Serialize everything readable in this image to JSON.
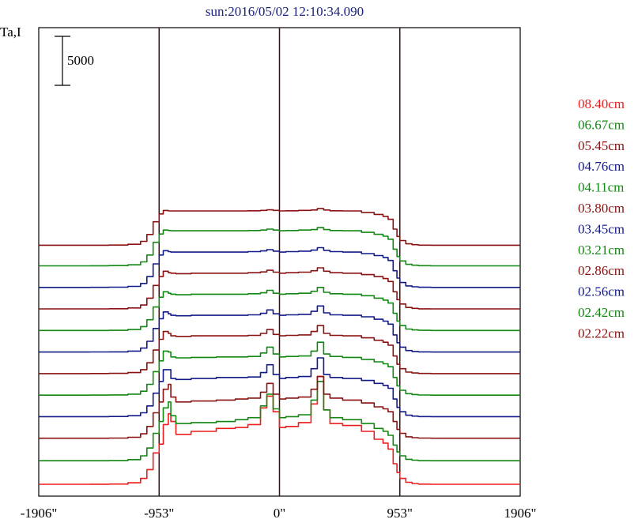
{
  "chart_data": {
    "type": "line",
    "title": "sun:2016/05/02 12:10:34.090",
    "ylabel": "Ta,I",
    "scale_bar_label": "5000",
    "scale_bar_value": 5000,
    "xlim": [
      -1906,
      1906
    ],
    "x_ticks": [
      {
        "value": -1906,
        "label": "-1906\""
      },
      {
        "value": -953,
        "label": "-953\""
      },
      {
        "value": 0,
        "label": "0\""
      },
      {
        "value": 953,
        "label": "953\""
      },
      {
        "value": 1906,
        "label": "1906\""
      }
    ],
    "vertical_markers": [
      -953,
      0,
      953
    ],
    "grid": false,
    "legend_position": "right",
    "x": [
      -1906,
      -1700,
      -1500,
      -1350,
      -1200,
      -1100,
      -1050,
      -1000,
      -953,
      -920,
      -880,
      -860,
      -820,
      -700,
      -500,
      -350,
      -250,
      -150,
      -100,
      -50,
      0,
      50,
      150,
      250,
      300,
      350,
      400,
      500,
      650,
      750,
      820,
      860,
      900,
      930,
      953,
      1000,
      1050,
      1100,
      1200,
      1350,
      1500,
      1700,
      1906
    ],
    "series": [
      {
        "name": "08.40cm",
        "color": "#ee1c1c",
        "offset": 0,
        "values": [
          0,
          0,
          5,
          25,
          150,
          600,
          1500,
          3200,
          4100,
          6100,
          7200,
          6400,
          5100,
          5400,
          5700,
          5800,
          6100,
          7800,
          9000,
          7400,
          5800,
          5900,
          6300,
          8200,
          11000,
          7600,
          6200,
          6000,
          5400,
          4600,
          4200,
          3600,
          2100,
          1200,
          600,
          200,
          80,
          20,
          0,
          0,
          0,
          0,
          0
        ]
      },
      {
        "name": "06.67cm",
        "color": "#118811",
        "offset": 2400,
        "values": [
          0,
          0,
          5,
          25,
          120,
          500,
          1300,
          2800,
          4000,
          5400,
          6000,
          4600,
          3800,
          3900,
          4000,
          4200,
          4400,
          5600,
          6800,
          5300,
          4400,
          4500,
          4700,
          6200,
          8100,
          5200,
          4400,
          4200,
          3800,
          3300,
          3000,
          2600,
          1600,
          900,
          500,
          150,
          60,
          15,
          0,
          0,
          0,
          0,
          0
        ]
      },
      {
        "name": "05.45cm",
        "color": "#8b1111",
        "offset": 4700,
        "values": [
          0,
          0,
          5,
          20,
          100,
          450,
          1200,
          2600,
          3700,
          5000,
          5500,
          4200,
          3700,
          3800,
          3900,
          4000,
          4100,
          4700,
          5600,
          4500,
          4000,
          4100,
          4200,
          5000,
          6300,
          4500,
          4100,
          3900,
          3600,
          3200,
          3000,
          2700,
          1700,
          900,
          500,
          150,
          60,
          15,
          0,
          0,
          0,
          0,
          0
        ]
      },
      {
        "name": "04.76cm",
        "color": "#121a8a",
        "offset": 6900,
        "values": [
          0,
          0,
          5,
          20,
          100,
          400,
          1100,
          2400,
          3600,
          4800,
          4800,
          3900,
          3800,
          3900,
          4000,
          4000,
          4050,
          4500,
          5300,
          4300,
          3900,
          4000,
          4100,
          4900,
          6000,
          4300,
          4000,
          3900,
          3700,
          3400,
          3200,
          2900,
          1800,
          950,
          500,
          150,
          60,
          15,
          0,
          0,
          0,
          0,
          0
        ]
      },
      {
        "name": "04.11cm",
        "color": "#118811",
        "offset": 9100,
        "values": [
          0,
          0,
          5,
          20,
          100,
          400,
          1100,
          2400,
          3500,
          4500,
          4400,
          3900,
          3800,
          3850,
          3900,
          3900,
          3950,
          4300,
          4900,
          4200,
          3900,
          3950,
          4000,
          4500,
          5400,
          4200,
          3950,
          3850,
          3650,
          3400,
          3200,
          2900,
          1800,
          950,
          500,
          150,
          60,
          15,
          0,
          0,
          0,
          0,
          0
        ]
      },
      {
        "name": "03.80cm",
        "color": "#8b1111",
        "offset": 11300,
        "values": [
          0,
          0,
          5,
          20,
          100,
          400,
          1100,
          2400,
          3500,
          4300,
          4100,
          3850,
          3800,
          3850,
          3850,
          3850,
          3900,
          4100,
          4500,
          4000,
          3850,
          3900,
          3950,
          4300,
          4900,
          4100,
          3900,
          3850,
          3650,
          3400,
          3200,
          2900,
          1800,
          950,
          500,
          150,
          60,
          15,
          0,
          0,
          0,
          0,
          0
        ]
      },
      {
        "name": "03.45cm",
        "color": "#121a8a",
        "offset": 13500,
        "values": [
          0,
          0,
          5,
          20,
          100,
          400,
          1100,
          2400,
          3400,
          4100,
          3900,
          3750,
          3700,
          3750,
          3750,
          3750,
          3800,
          3950,
          4300,
          3900,
          3750,
          3800,
          3850,
          4150,
          4700,
          4000,
          3800,
          3750,
          3600,
          3350,
          3150,
          2850,
          1750,
          950,
          500,
          150,
          60,
          15,
          0,
          0,
          0,
          0,
          0
        ]
      },
      {
        "name": "03.21cm",
        "color": "#118811",
        "offset": 15700,
        "values": [
          0,
          0,
          5,
          20,
          100,
          400,
          1100,
          2400,
          3400,
          3950,
          3800,
          3700,
          3650,
          3700,
          3700,
          3700,
          3750,
          3850,
          4100,
          3800,
          3700,
          3750,
          3800,
          4000,
          4400,
          3900,
          3750,
          3700,
          3550,
          3300,
          3100,
          2800,
          1750,
          950,
          500,
          150,
          60,
          15,
          0,
          0,
          0,
          0,
          0
        ]
      },
      {
        "name": "02.86cm",
        "color": "#8b1111",
        "offset": 17900,
        "values": [
          0,
          0,
          5,
          20,
          100,
          400,
          1100,
          2400,
          3300,
          3850,
          3700,
          3650,
          3600,
          3650,
          3650,
          3650,
          3700,
          3780,
          3950,
          3750,
          3650,
          3700,
          3750,
          3900,
          4200,
          3850,
          3700,
          3650,
          3500,
          3300,
          3100,
          2800,
          1750,
          950,
          500,
          150,
          60,
          15,
          0,
          0,
          0,
          0,
          0
        ]
      },
      {
        "name": "02.56cm",
        "color": "#121a8a",
        "offset": 20100,
        "values": [
          0,
          0,
          5,
          20,
          100,
          400,
          1100,
          2400,
          3300,
          3750,
          3650,
          3600,
          3600,
          3600,
          3600,
          3600,
          3650,
          3720,
          3850,
          3700,
          3600,
          3650,
          3700,
          3800,
          4050,
          3780,
          3650,
          3600,
          3450,
          3250,
          3050,
          2750,
          1700,
          950,
          500,
          150,
          60,
          15,
          0,
          0,
          0,
          0,
          0
        ]
      },
      {
        "name": "02.42cm",
        "color": "#118811",
        "offset": 22300,
        "values": [
          0,
          0,
          5,
          20,
          100,
          400,
          1100,
          2400,
          3250,
          3650,
          3600,
          3580,
          3580,
          3580,
          3580,
          3580,
          3600,
          3650,
          3750,
          3650,
          3580,
          3600,
          3650,
          3700,
          3900,
          3700,
          3600,
          3580,
          3420,
          3220,
          3020,
          2720,
          1700,
          950,
          500,
          150,
          60,
          15,
          0,
          0,
          0,
          0,
          0
        ]
      },
      {
        "name": "02.22cm",
        "color": "#8b1111",
        "offset": 24400,
        "values": [
          0,
          0,
          5,
          20,
          100,
          400,
          1100,
          2400,
          3200,
          3550,
          3500,
          3500,
          3500,
          3500,
          3500,
          3500,
          3520,
          3560,
          3620,
          3560,
          3500,
          3520,
          3560,
          3600,
          3750,
          3600,
          3520,
          3500,
          3350,
          3150,
          2950,
          2650,
          1650,
          900,
          480,
          150,
          60,
          15,
          0,
          0,
          0,
          0,
          0
        ]
      }
    ]
  }
}
